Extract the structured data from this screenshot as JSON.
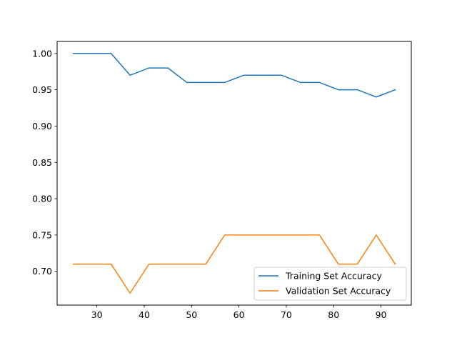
{
  "chart_data": {
    "type": "line",
    "title": "",
    "xlabel": "",
    "ylabel": "",
    "xlim": [
      21.6,
      96.4
    ],
    "ylim": [
      0.6535,
      1.0165
    ],
    "xticks": [
      30,
      40,
      50,
      60,
      70,
      80,
      90
    ],
    "xtick_labels": [
      "30",
      "40",
      "50",
      "60",
      "70",
      "80",
      "90"
    ],
    "yticks": [
      0.7,
      0.75,
      0.8,
      0.85,
      0.9,
      0.95,
      1.0
    ],
    "ytick_labels": [
      "0.70",
      "0.75",
      "0.80",
      "0.85",
      "0.90",
      "0.95",
      "1.00"
    ],
    "grid": false,
    "legend_position": "lower-right",
    "x": [
      25,
      29,
      33,
      37,
      41,
      45,
      49,
      53,
      57,
      61,
      65,
      69,
      73,
      77,
      81,
      85,
      89,
      93
    ],
    "series": [
      {
        "name": "Training Set Accuracy",
        "color": "#1f77b4",
        "values": [
          1.0,
          1.0,
          1.0,
          0.97,
          0.98,
          0.98,
          0.96,
          0.96,
          0.96,
          0.97,
          0.97,
          0.97,
          0.96,
          0.96,
          0.95,
          0.95,
          0.94,
          0.95
        ]
      },
      {
        "name": "Validation Set Accuracy",
        "color": "#ff7f0e",
        "values": [
          0.71,
          0.71,
          0.71,
          0.67,
          0.71,
          0.71,
          0.71,
          0.71,
          0.75,
          0.75,
          0.75,
          0.75,
          0.75,
          0.75,
          0.71,
          0.71,
          0.75,
          0.71
        ]
      }
    ]
  }
}
